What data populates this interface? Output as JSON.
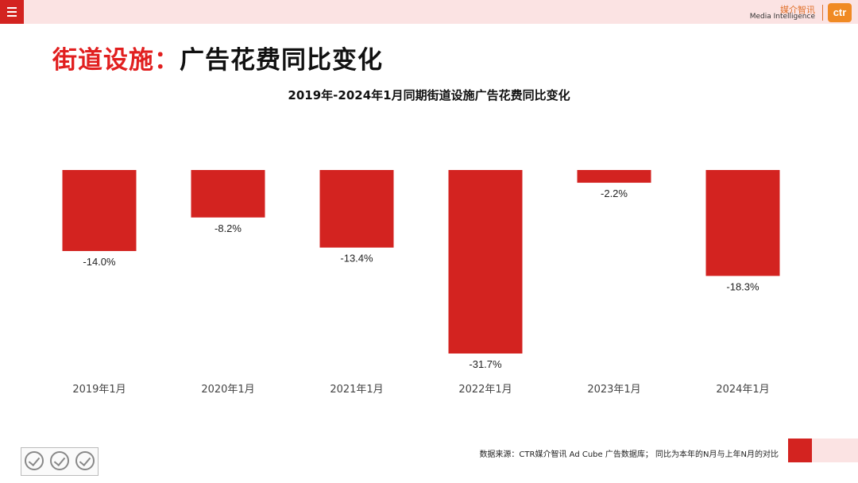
{
  "header": {
    "brand_cn": "媒介智讯",
    "brand_en": "Media Intelligence",
    "brand_logo": "ctr"
  },
  "page": {
    "title_part1": "街道设施：",
    "title_part2": "广告花费同比变化"
  },
  "footer": {
    "source_note": "数据来源：CTR媒介智讯 Ad Cube 广告数据库； 同比为本年的N月与上年N月的对比"
  },
  "colors": {
    "bar": "#d32320",
    "accent": "#e11f1f",
    "topbar": "#fbe3e3"
  },
  "chart_data": {
    "type": "bar",
    "title": "2019年-2024年1月同期街道设施广告花费同比变化",
    "categories": [
      "2019年1月",
      "2020年1月",
      "2021年1月",
      "2022年1月",
      "2023年1月",
      "2024年1月"
    ],
    "values": [
      -14.0,
      -8.2,
      -13.4,
      -31.7,
      -2.2,
      -18.3
    ],
    "value_labels": [
      "-14.0%",
      "-8.2%",
      "-13.4%",
      "-31.7%",
      "-2.2%",
      "-18.3%"
    ],
    "xlabel": "",
    "ylabel": "",
    "ylim": [
      -31.7,
      0
    ],
    "grid": false,
    "legend": "none"
  }
}
